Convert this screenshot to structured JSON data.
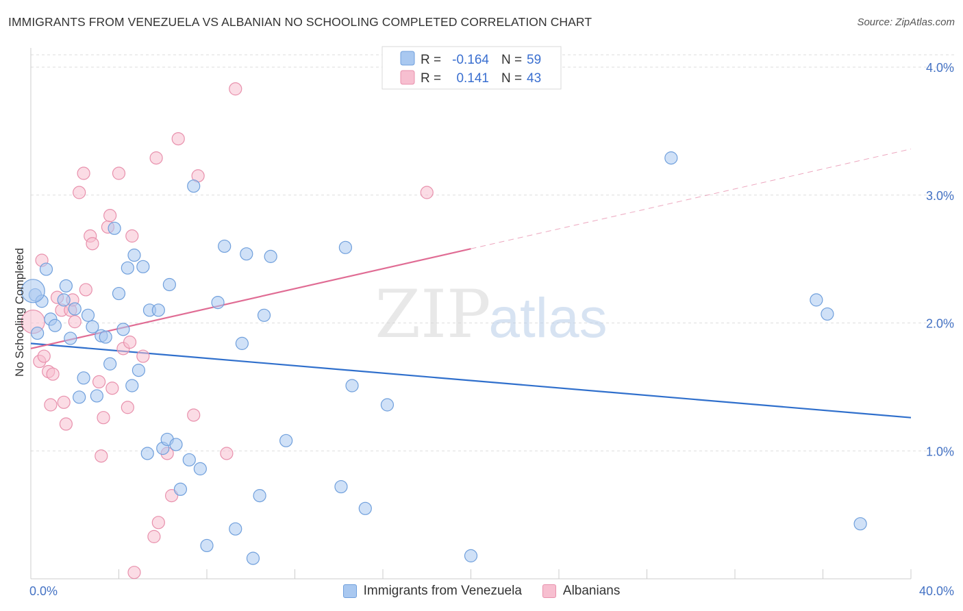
{
  "title": "IMMIGRANTS FROM VENEZUELA VS ALBANIAN NO SCHOOLING COMPLETED CORRELATION CHART",
  "source": "Source: ZipAtlas.com",
  "colors": {
    "blue_fill": "#a9c8f0",
    "blue_stroke": "#6f9fdc",
    "blue_line": "#2f6fcc",
    "pink_fill": "#f7bfd0",
    "pink_stroke": "#e890ac",
    "pink_line": "#e06c94",
    "tick_text": "#4472c4",
    "value_text": "#3a6fd0"
  },
  "watermark": {
    "part1": "ZIP",
    "part2": "atlas"
  },
  "legend": {
    "rows": [
      {
        "r_label": "R =",
        "r_value": "-0.164",
        "n_label": "N =",
        "n_value": "59"
      },
      {
        "r_label": "R =",
        "r_value": "0.141",
        "n_label": "N =",
        "n_value": "43"
      }
    ]
  },
  "chart_data": {
    "type": "scatter",
    "title": "IMMIGRANTS FROM VENEZUELA VS ALBANIAN NO SCHOOLING COMPLETED CORRELATION CHART",
    "xlabel": "",
    "ylabel": "No Schooling Completed",
    "xlim": [
      0,
      40
    ],
    "ylim": [
      0,
      4.15
    ],
    "x_tick_labels": [
      "0.0%",
      "40.0%"
    ],
    "y_ticks": [
      1,
      2,
      3,
      4
    ],
    "y_tick_labels": [
      "1.0%",
      "2.0%",
      "3.0%",
      "4.0%"
    ],
    "grid": true,
    "legend_position": "top-center",
    "series": [
      {
        "name": "Immigrants from Venezuela",
        "r": -0.164,
        "n": 59,
        "trend": {
          "x0": 0,
          "y0": 1.84,
          "x1": 40,
          "y1": 1.26
        },
        "points": [
          [
            0.2,
            2.22
          ],
          [
            0.3,
            1.92
          ],
          [
            0.5,
            2.17
          ],
          [
            0.7,
            2.42
          ],
          [
            0.9,
            2.03
          ],
          [
            1.1,
            1.98
          ],
          [
            1.6,
            2.29
          ],
          [
            1.5,
            2.18
          ],
          [
            2.0,
            2.11
          ],
          [
            1.8,
            1.88
          ],
          [
            2.2,
            1.42
          ],
          [
            2.4,
            1.57
          ],
          [
            2.6,
            2.06
          ],
          [
            2.8,
            1.97
          ],
          [
            3.0,
            1.43
          ],
          [
            3.2,
            1.9
          ],
          [
            3.4,
            1.89
          ],
          [
            3.6,
            1.68
          ],
          [
            3.8,
            2.74
          ],
          [
            4.0,
            2.23
          ],
          [
            4.2,
            1.95
          ],
          [
            4.4,
            2.43
          ],
          [
            4.6,
            1.51
          ],
          [
            4.7,
            2.53
          ],
          [
            4.9,
            1.63
          ],
          [
            5.1,
            2.44
          ],
          [
            5.3,
            0.98
          ],
          [
            5.4,
            2.1
          ],
          [
            5.8,
            2.1
          ],
          [
            6.0,
            1.02
          ],
          [
            6.2,
            1.09
          ],
          [
            6.3,
            2.3
          ],
          [
            6.6,
            1.05
          ],
          [
            6.8,
            0.7
          ],
          [
            7.2,
            0.93
          ],
          [
            7.4,
            3.07
          ],
          [
            7.7,
            0.86
          ],
          [
            8.0,
            0.26
          ],
          [
            8.5,
            2.16
          ],
          [
            8.8,
            2.6
          ],
          [
            9.3,
            0.39
          ],
          [
            9.6,
            1.84
          ],
          [
            9.8,
            2.54
          ],
          [
            10.1,
            0.16
          ],
          [
            10.4,
            0.65
          ],
          [
            10.6,
            2.06
          ],
          [
            10.9,
            2.52
          ],
          [
            11.6,
            1.08
          ],
          [
            14.1,
            0.72
          ],
          [
            14.3,
            2.59
          ],
          [
            14.6,
            1.51
          ],
          [
            15.2,
            0.55
          ],
          [
            16.2,
            1.36
          ],
          [
            20.0,
            0.18
          ],
          [
            29.1,
            3.29
          ],
          [
            35.7,
            2.18
          ],
          [
            36.2,
            2.07
          ],
          [
            37.7,
            0.43
          ],
          [
            0.1,
            2.25
          ]
        ]
      },
      {
        "name": "Albanians",
        "r": 0.141,
        "n": 43,
        "trend": {
          "x0": 0,
          "y0": 1.8,
          "x1": 20,
          "y1": 2.58,
          "dash_to_x": 40,
          "dash_to_y": 3.36
        },
        "points": [
          [
            0.1,
            2.01
          ],
          [
            0.4,
            1.7
          ],
          [
            0.5,
            2.49
          ],
          [
            0.6,
            1.74
          ],
          [
            0.8,
            1.62
          ],
          [
            0.9,
            1.36
          ],
          [
            1.0,
            1.6
          ],
          [
            1.2,
            2.2
          ],
          [
            1.4,
            2.1
          ],
          [
            1.5,
            1.38
          ],
          [
            1.6,
            1.21
          ],
          [
            1.8,
            2.1
          ],
          [
            1.9,
            2.18
          ],
          [
            2.0,
            2.01
          ],
          [
            2.2,
            3.02
          ],
          [
            2.4,
            3.17
          ],
          [
            2.5,
            2.26
          ],
          [
            2.7,
            2.68
          ],
          [
            2.8,
            2.62
          ],
          [
            3.1,
            1.54
          ],
          [
            3.2,
            0.96
          ],
          [
            3.3,
            1.26
          ],
          [
            3.5,
            2.75
          ],
          [
            3.6,
            2.84
          ],
          [
            3.7,
            1.49
          ],
          [
            4.0,
            3.17
          ],
          [
            4.2,
            1.8
          ],
          [
            4.4,
            1.34
          ],
          [
            4.5,
            1.85
          ],
          [
            4.6,
            2.68
          ],
          [
            4.7,
            0.05
          ],
          [
            5.1,
            1.74
          ],
          [
            5.6,
            0.33
          ],
          [
            5.8,
            0.44
          ],
          [
            5.7,
            3.29
          ],
          [
            6.2,
            0.98
          ],
          [
            6.4,
            0.65
          ],
          [
            6.7,
            3.44
          ],
          [
            7.4,
            1.28
          ],
          [
            7.6,
            3.15
          ],
          [
            8.9,
            0.98
          ],
          [
            9.3,
            3.83
          ],
          [
            18.0,
            3.02
          ]
        ]
      }
    ]
  },
  "bottom_legend": [
    {
      "label": "Immigrants from Venezuela"
    },
    {
      "label": "Albanians"
    }
  ]
}
